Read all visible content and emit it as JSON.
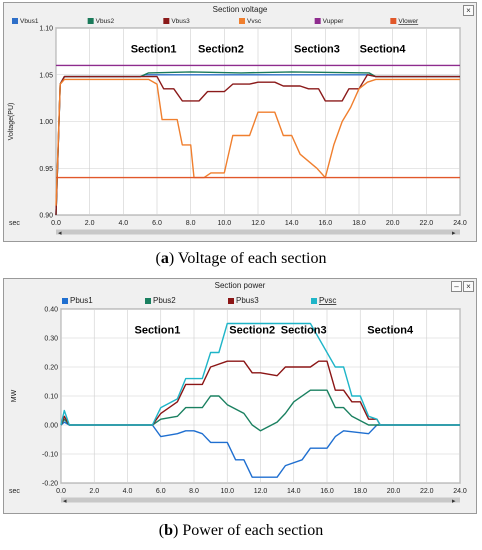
{
  "charts": [
    {
      "window_title": "Section voltage",
      "caption_letter": "a",
      "caption_text": " Voltage  of  each  section",
      "sec_label": "sec",
      "chart_data": {
        "type": "line",
        "title": "Section voltage",
        "xlabel": "sec",
        "ylabel": "Voltage(PU)",
        "xlim": [
          0,
          24
        ],
        "ylim": [
          0.9,
          1.1
        ],
        "xticks": [
          "0.0",
          "2.0",
          "4.0",
          "6.0",
          "8.0",
          "10.0",
          "12.0",
          "14.0",
          "16.0",
          "18.0",
          "20.0",
          "22.0",
          "24.0"
        ],
        "yticks": [
          "0.90",
          "0.95",
          "1.00",
          "1.05",
          "1.10"
        ],
        "grid": true,
        "legend_position": "top",
        "series": [
          {
            "name": "Vbus1",
            "color": "#2e6fc8",
            "points": [
              [
                0,
                0.9
              ],
              [
                0.25,
                1.04
              ],
              [
                0.5,
                1.048
              ],
              [
                5,
                1.048
              ],
              [
                5.3,
                1.05
              ],
              [
                6,
                1.05
              ],
              [
                18.6,
                1.05
              ],
              [
                19,
                1.048
              ],
              [
                24,
                1.048
              ]
            ]
          },
          {
            "name": "Vbus2",
            "color": "#1a7a5a",
            "points": [
              [
                0,
                0.9
              ],
              [
                0.25,
                1.04
              ],
              [
                0.5,
                1.048
              ],
              [
                5,
                1.048
              ],
              [
                5.5,
                1.052
              ],
              [
                8,
                1.053
              ],
              [
                11,
                1.052
              ],
              [
                14,
                1.053
              ],
              [
                18.6,
                1.052
              ],
              [
                19,
                1.048
              ],
              [
                24,
                1.048
              ]
            ]
          },
          {
            "name": "Vbus3",
            "color": "#8b1a1a",
            "points": [
              [
                0,
                0.9
              ],
              [
                0.25,
                1.04
              ],
              [
                0.5,
                1.048
              ],
              [
                5,
                1.048
              ],
              [
                6,
                1.048
              ],
              [
                6.4,
                1.035
              ],
              [
                7,
                1.035
              ],
              [
                7.5,
                1.022
              ],
              [
                8.5,
                1.022
              ],
              [
                9,
                1.032
              ],
              [
                10,
                1.032
              ],
              [
                10.5,
                1.04
              ],
              [
                11.5,
                1.04
              ],
              [
                12,
                1.042
              ],
              [
                13,
                1.042
              ],
              [
                13.5,
                1.038
              ],
              [
                14.5,
                1.038
              ],
              [
                15,
                1.035
              ],
              [
                15.6,
                1.035
              ],
              [
                16,
                1.022
              ],
              [
                17,
                1.022
              ],
              [
                17.4,
                1.035
              ],
              [
                18,
                1.035
              ],
              [
                18.5,
                1.05
              ],
              [
                19,
                1.048
              ],
              [
                24,
                1.048
              ]
            ]
          },
          {
            "name": "Vvsc",
            "color": "#f07f2e",
            "points": [
              [
                0,
                0.91
              ],
              [
                0.25,
                1.04
              ],
              [
                0.5,
                1.045
              ],
              [
                5,
                1.045
              ],
              [
                5.5,
                1.045
              ],
              [
                6,
                1.04
              ],
              [
                6.3,
                1.002
              ],
              [
                7.2,
                1.002
              ],
              [
                7.5,
                0.975
              ],
              [
                8,
                0.975
              ],
              [
                8.2,
                0.94
              ],
              [
                8.8,
                0.94
              ],
              [
                9.2,
                0.945
              ],
              [
                10,
                0.945
              ],
              [
                10.5,
                0.985
              ],
              [
                11.5,
                0.985
              ],
              [
                12,
                1.01
              ],
              [
                13,
                1.01
              ],
              [
                13.5,
                0.985
              ],
              [
                14,
                0.985
              ],
              [
                14.5,
                0.965
              ],
              [
                15.5,
                0.95
              ],
              [
                16,
                0.94
              ],
              [
                16.5,
                0.975
              ],
              [
                17,
                1.0
              ],
              [
                17.5,
                1.015
              ],
              [
                18,
                1.035
              ],
              [
                18.5,
                1.042
              ],
              [
                19,
                1.045
              ],
              [
                24,
                1.045
              ]
            ]
          },
          {
            "name": "Vupper",
            "color": "#8e2b8e",
            "points": [
              [
                0,
                1.06
              ],
              [
                24,
                1.06
              ]
            ]
          },
          {
            "name": "Vlower",
            "color": "#e1582a",
            "points": [
              [
                0,
                0.94
              ],
              [
                24,
                0.94
              ]
            ]
          }
        ],
        "annotations": [
          {
            "text": "Section1",
            "x": 5.8,
            "y": 1.074
          },
          {
            "text": "Section2",
            "x": 9.8,
            "y": 1.074
          },
          {
            "text": "Section3",
            "x": 15.5,
            "y": 1.074
          },
          {
            "text": "Section4",
            "x": 19.4,
            "y": 1.074
          }
        ]
      }
    },
    {
      "window_title": "Section power",
      "caption_letter": "b",
      "caption_text": "  Power of each section",
      "sec_label": "sec",
      "chart_data": {
        "type": "line",
        "title": "Section power",
        "xlabel": "sec",
        "ylabel": "MW",
        "xlim": [
          0,
          24
        ],
        "ylim": [
          -0.2,
          0.4
        ],
        "xticks": [
          "0.0",
          "2.0",
          "4.0",
          "6.0",
          "8.0",
          "10.0",
          "12.0",
          "14.0",
          "16.0",
          "18.0",
          "20.0",
          "22.0",
          "24.0"
        ],
        "yticks": [
          "-0.20",
          "-0.10",
          "0.00",
          "0.10",
          "0.20",
          "0.30",
          "0.40"
        ],
        "grid": true,
        "legend_position": "top",
        "series": [
          {
            "name": "Pbus1",
            "color": "#1f6fd0",
            "points": [
              [
                0,
                0.0
              ],
              [
                0.2,
                0.01
              ],
              [
                0.5,
                0.0
              ],
              [
                5.5,
                0.0
              ],
              [
                6,
                -0.04
              ],
              [
                7,
                -0.03
              ],
              [
                7.5,
                -0.02
              ],
              [
                8,
                -0.02
              ],
              [
                8.5,
                -0.03
              ],
              [
                9,
                -0.06
              ],
              [
                10,
                -0.06
              ],
              [
                10.5,
                -0.12
              ],
              [
                11,
                -0.12
              ],
              [
                11.5,
                -0.18
              ],
              [
                13,
                -0.18
              ],
              [
                13.5,
                -0.14
              ],
              [
                14.5,
                -0.12
              ],
              [
                15,
                -0.08
              ],
              [
                16,
                -0.08
              ],
              [
                16.5,
                -0.04
              ],
              [
                17,
                -0.02
              ],
              [
                18.5,
                -0.03
              ],
              [
                19,
                0.0
              ],
              [
                24,
                0.0
              ]
            ]
          },
          {
            "name": "Pbus2",
            "color": "#1a8060",
            "points": [
              [
                0,
                0.0
              ],
              [
                0.2,
                0.02
              ],
              [
                0.5,
                0.0
              ],
              [
                5.5,
                0.0
              ],
              [
                6,
                0.02
              ],
              [
                7,
                0.03
              ],
              [
                7.5,
                0.06
              ],
              [
                8.5,
                0.06
              ],
              [
                9,
                0.1
              ],
              [
                9.5,
                0.1
              ],
              [
                10,
                0.07
              ],
              [
                11,
                0.04
              ],
              [
                11.5,
                0.0
              ],
              [
                12,
                -0.02
              ],
              [
                13,
                0.01
              ],
              [
                13.5,
                0.04
              ],
              [
                14,
                0.08
              ],
              [
                15,
                0.12
              ],
              [
                16,
                0.12
              ],
              [
                16.5,
                0.06
              ],
              [
                17,
                0.06
              ],
              [
                17.5,
                0.03
              ],
              [
                18.5,
                0.0
              ],
              [
                19,
                0.0
              ],
              [
                24,
                0.0
              ]
            ]
          },
          {
            "name": "Pbus3",
            "color": "#8b1515",
            "points": [
              [
                0,
                0.0
              ],
              [
                0.2,
                0.03
              ],
              [
                0.5,
                0.0
              ],
              [
                5.5,
                0.0
              ],
              [
                6,
                0.04
              ],
              [
                7,
                0.08
              ],
              [
                7.5,
                0.14
              ],
              [
                8.5,
                0.14
              ],
              [
                9,
                0.2
              ],
              [
                10,
                0.22
              ],
              [
                11,
                0.22
              ],
              [
                11.5,
                0.18
              ],
              [
                12,
                0.18
              ],
              [
                13,
                0.17
              ],
              [
                13.5,
                0.2
              ],
              [
                15,
                0.2
              ],
              [
                15.5,
                0.22
              ],
              [
                16,
                0.22
              ],
              [
                16.5,
                0.12
              ],
              [
                17,
                0.12
              ],
              [
                17.5,
                0.08
              ],
              [
                18,
                0.08
              ],
              [
                18.5,
                0.02
              ],
              [
                19,
                0.02
              ],
              [
                19.2,
                0.0
              ],
              [
                24,
                0.0
              ]
            ]
          },
          {
            "name": "Pvsc",
            "color": "#1fb5c8",
            "points": [
              [
                0,
                0.0
              ],
              [
                0.2,
                0.05
              ],
              [
                0.5,
                0.0
              ],
              [
                5.5,
                0.0
              ],
              [
                6,
                0.06
              ],
              [
                7,
                0.09
              ],
              [
                7.5,
                0.16
              ],
              [
                8.5,
                0.16
              ],
              [
                9,
                0.25
              ],
              [
                9.5,
                0.25
              ],
              [
                10,
                0.35
              ],
              [
                15,
                0.35
              ],
              [
                15.5,
                0.3
              ],
              [
                16,
                0.25
              ],
              [
                16.5,
                0.2
              ],
              [
                17,
                0.2
              ],
              [
                17.5,
                0.1
              ],
              [
                18,
                0.1
              ],
              [
                18.5,
                0.03
              ],
              [
                19,
                0.02
              ],
              [
                19.2,
                0.0
              ],
              [
                24,
                0.0
              ]
            ]
          }
        ],
        "annotations": [
          {
            "text": "Section1",
            "x": 5.8,
            "y": 0.315
          },
          {
            "text": "Section2",
            "x": 11.5,
            "y": 0.315
          },
          {
            "text": "Section3",
            "x": 14.6,
            "y": 0.315
          },
          {
            "text": "Section4",
            "x": 19.8,
            "y": 0.315
          }
        ]
      }
    }
  ]
}
